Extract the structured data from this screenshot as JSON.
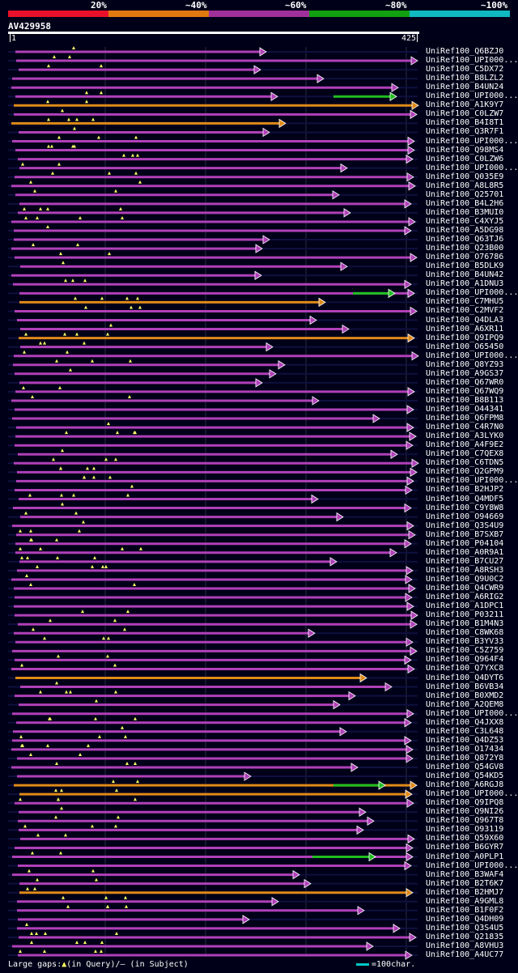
{
  "legend": {
    "labels": [
      "20%",
      "~40%",
      "~60%",
      "~80%",
      "~100%"
    ],
    "colors": [
      "#e8102a",
      "#e07a10",
      "#a0309a",
      "#10a010",
      "#10b8c0"
    ]
  },
  "query": {
    "id": "AV429958",
    "start": "1",
    "end": "425"
  },
  "hits": [
    "UniRef100_Q6BZJ0",
    "UniRef100_UPI000...",
    "UniRef100_C5DX72",
    "UniRef100_B8LZL2",
    "UniRef100_B4UN24",
    "UniRef100_UPI000...",
    "UniRef100_A1K9Y7",
    "UniRef100_C0LZW7",
    "UniRef100_B4I8T1",
    "UniRef100_Q3R7F1",
    "UniRef100_UPI000...",
    "UniRef100_Q98MS4",
    "UniRef100_C0LZW6",
    "UniRef100_UPI000...",
    "UniRef100_Q035E9",
    "UniRef100_A8L8R5",
    "UniRef100_Q25701",
    "UniRef100_B4L2H6",
    "UniRef100_B3MUI0",
    "UniRef100_C4XYJ5",
    "UniRef100_A5DG98",
    "UniRef100_Q63TJ6",
    "UniRef100_Q23B00",
    "UniRef100_O76786",
    "UniRef100_B5DLK9",
    "UniRef100_B4UN42",
    "UniRef100_A1DNU3",
    "UniRef100_UPI000...",
    "UniRef100_C7MHU5",
    "UniRef100_C2MVF2",
    "UniRef100_Q4DLA3",
    "UniRef100_A6XR11",
    "UniRef100_Q9IPQ9",
    "UniRef100_O65450",
    "UniRef100_UPI000...",
    "UniRef100_Q8YZ93",
    "UniRef100_A9GS37",
    "UniRef100_Q67WR0",
    "UniRef100_Q67WQ9",
    "UniRef100_B8B113",
    "UniRef100_O44341",
    "UniRef100_Q6FPM8",
    "UniRef100_C4R7N0",
    "UniRef100_A3LYK0",
    "UniRef100_A4F9E2",
    "UniRef100_C7QEX8",
    "UniRef100_C6TDN5",
    "UniRef100_Q2GPM9",
    "UniRef100_UPI000...",
    "UniRef100_B2HJP2",
    "UniRef100_Q4MDF5",
    "UniRef100_C9Y8W8",
    "UniRef100_O94669",
    "UniRef100_Q3S4U9",
    "UniRef100_B7SXB7",
    "UniRef100_P04104",
    "UniRef100_A0R9A1",
    "UniRef100_B7CU27",
    "UniRef100_A8RSH3",
    "UniRef100_Q9U0C2",
    "UniRef100_Q4CWR9",
    "UniRef100_A6RIG2",
    "UniRef100_A1DPC1",
    "UniRef100_P03211",
    "UniRef100_B1M4N3",
    "UniRef100_C8WK68",
    "UniRef100_B3YV33",
    "UniRef100_C5Z759",
    "UniRef100_Q964F4",
    "UniRef100_Q7YXC8",
    "UniRef100_Q4DYT6",
    "UniRef100_B6VB34",
    "UniRef100_B0XMD2",
    "UniRef100_A2QEM8",
    "UniRef100_UPI000...",
    "UniRef100_Q4JXX8",
    "UniRef100_C3L648",
    "UniRef100_Q4DZ53",
    "UniRef100_O17434",
    "UniRef100_Q872Y8",
    "UniRef100_Q54GV8",
    "UniRef100_Q54KD5",
    "UniRef100_A6RGJ8",
    "UniRef100_UPI000...",
    "UniRef100_Q9IPQ8",
    "UniRef100_Q9NI26",
    "UniRef100_Q967T8",
    "UniRef100_O93119",
    "UniRef100_Q59X60",
    "UniRef100_B6GYR7",
    "UniRef100_A0PLP1",
    "UniRef100_UPI000...",
    "UniRef100_B3WAF4",
    "UniRef100_B2T6K7",
    "UniRef100_B2HMJ7",
    "UniRef100_A9GML8",
    "UniRef100_B1F0F2",
    "UniRef100_Q4DH09",
    "UniRef100_Q3S4U5",
    "UniRef100_Q21835",
    "UniRef100_A8VHU3",
    "UniRef100_A4UC77"
  ],
  "footer": {
    "prefix": "Large gaps:",
    "query_gap_symbol": "▲",
    "query_gap_text": "(in Query)/",
    "subject_gap_symbol": "—",
    "subject_gap_text": " (in Subject)"
  },
  "scale": {
    "text": "=100char."
  }
}
